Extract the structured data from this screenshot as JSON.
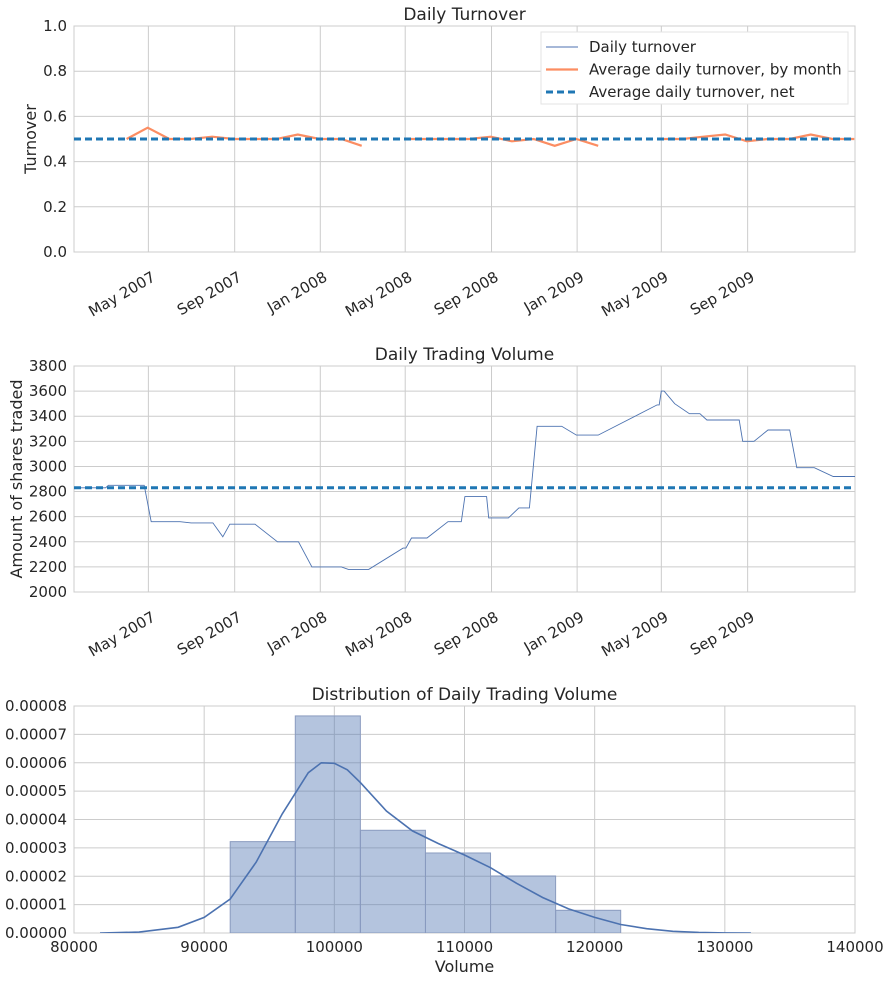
{
  "chart_data": [
    {
      "type": "line",
      "title": "Daily Turnover",
      "xlabel": "",
      "ylabel": "Turnover",
      "ylim": [
        0,
        1.0
      ],
      "xlim": [
        "2007-01-15",
        "2010-02-01"
      ],
      "yticks": [
        "0.0",
        "0.2",
        "0.4",
        "0.6",
        "0.8",
        "1.0"
      ],
      "xticks": [
        "May 2007",
        "Sep 2007",
        "Jan 2008",
        "May 2008",
        "Sep 2008",
        "Jan 2009",
        "May 2009",
        "Sep 2009"
      ],
      "grid": true,
      "legend_position": "top-right",
      "legend": [
        "Daily turnover",
        "Average daily turnover, by month",
        "Average daily turnover, net"
      ],
      "series": [
        {
          "name": "Average daily turnover, by month",
          "color": "#fc8d62",
          "segments": [
            [
              [
                "2007-03-31",
                0.5
              ],
              [
                "2007-04-30",
                0.55
              ],
              [
                "2007-05-31",
                0.5
              ],
              [
                "2007-06-30",
                0.5
              ],
              [
                "2007-07-31",
                0.51
              ],
              [
                "2007-08-31",
                0.5
              ],
              [
                "2007-09-30",
                0.5
              ],
              [
                "2007-10-31",
                0.5
              ],
              [
                "2007-11-30",
                0.52
              ],
              [
                "2007-12-31",
                0.5
              ],
              [
                "2008-01-31",
                0.5
              ],
              [
                "2008-02-29",
                0.47
              ]
            ],
            [
              [
                "2008-04-30",
                0.5
              ],
              [
                "2008-05-31",
                0.5
              ],
              [
                "2008-06-30",
                0.5
              ],
              [
                "2008-07-31",
                0.5
              ],
              [
                "2008-08-31",
                0.51
              ],
              [
                "2008-09-30",
                0.49
              ],
              [
                "2008-10-31",
                0.5
              ],
              [
                "2008-11-30",
                0.47
              ],
              [
                "2008-12-31",
                0.5
              ],
              [
                "2009-01-31",
                0.47
              ]
            ],
            [
              [
                "2009-04-30",
                0.5
              ],
              [
                "2009-05-31",
                0.5
              ],
              [
                "2009-06-30",
                0.51
              ],
              [
                "2009-07-31",
                0.52
              ],
              [
                "2009-08-31",
                0.49
              ],
              [
                "2009-09-30",
                0.5
              ],
              [
                "2009-10-31",
                0.5
              ],
              [
                "2009-11-30",
                0.52
              ],
              [
                "2009-12-31",
                0.5
              ],
              [
                "2010-01-31",
                0.5
              ]
            ]
          ]
        },
        {
          "name": "Average daily turnover, net",
          "color": "#1f77b4",
          "style": "dashed",
          "value": 0.5
        }
      ]
    },
    {
      "type": "line",
      "title": "Daily Trading Volume",
      "xlabel": "",
      "ylabel": "Amount of shares traded",
      "ylim": [
        2000,
        3800
      ],
      "xlim": [
        "2007-01-15",
        "2010-02-01"
      ],
      "yticks": [
        "2000",
        "2200",
        "2400",
        "2600",
        "2800",
        "3000",
        "3200",
        "3400",
        "3600",
        "3800"
      ],
      "xticks": [
        "May 2007",
        "Sep 2007",
        "Jan 2008",
        "May 2008",
        "Sep 2008",
        "Jan 2009",
        "May 2009",
        "Sep 2009"
      ],
      "grid": true,
      "series": [
        {
          "name": "Daily turnover",
          "color": "#4c72b0",
          "points": [
            [
              "2007-01-15",
              2830
            ],
            [
              "2007-03-01",
              2830
            ],
            [
              "2007-03-05",
              2850
            ],
            [
              "2007-04-25",
              2850
            ],
            [
              "2007-05-05",
              2560
            ],
            [
              "2007-06-15",
              2560
            ],
            [
              "2007-07-01",
              2550
            ],
            [
              "2007-08-01",
              2550
            ],
            [
              "2007-08-15",
              2440
            ],
            [
              "2007-08-25",
              2540
            ],
            [
              "2007-09-30",
              2540
            ],
            [
              "2007-11-01",
              2400
            ],
            [
              "2007-12-01",
              2400
            ],
            [
              "2007-12-20",
              2200
            ],
            [
              "2008-01-31",
              2200
            ],
            [
              "2008-02-10",
              2180
            ],
            [
              "2008-03-10",
              2180
            ],
            [
              "2008-04-28",
              2350
            ],
            [
              "2008-05-02",
              2350
            ],
            [
              "2008-05-10",
              2430
            ],
            [
              "2008-06-01",
              2430
            ],
            [
              "2008-07-01",
              2560
            ],
            [
              "2008-07-20",
              2560
            ],
            [
              "2008-07-25",
              2760
            ],
            [
              "2008-08-25",
              2760
            ],
            [
              "2008-08-28",
              2590
            ],
            [
              "2008-09-25",
              2590
            ],
            [
              "2008-10-10",
              2670
            ],
            [
              "2008-10-25",
              2670
            ],
            [
              "2008-11-05",
              3320
            ],
            [
              "2008-12-10",
              3320
            ],
            [
              "2008-12-31",
              3250
            ],
            [
              "2009-01-31",
              3250
            ],
            [
              "2009-04-25",
              3490
            ],
            [
              "2009-04-28",
              3490
            ],
            [
              "2009-05-01",
              3600
            ],
            [
              "2009-05-05",
              3600
            ],
            [
              "2009-05-20",
              3500
            ],
            [
              "2009-06-10",
              3420
            ],
            [
              "2009-06-25",
              3420
            ],
            [
              "2009-07-05",
              3370
            ],
            [
              "2009-08-20",
              3370
            ],
            [
              "2009-08-25",
              3200
            ],
            [
              "2009-09-10",
              3200
            ],
            [
              "2009-09-30",
              3290
            ],
            [
              "2009-10-31",
              3290
            ],
            [
              "2009-11-10",
              2990
            ],
            [
              "2009-12-05",
              2990
            ],
            [
              "2010-01-01",
              2920
            ],
            [
              "2010-02-01",
              2920
            ]
          ]
        },
        {
          "name": "Average daily turnover, net",
          "color": "#1f77b4",
          "style": "dashed",
          "value": 2830
        }
      ]
    },
    {
      "type": "bar",
      "title": "Distribution of Daily Trading Volume",
      "xlabel": "Volume",
      "ylabel": "",
      "xlim": [
        80000,
        140000
      ],
      "ylim": [
        0,
        8e-05
      ],
      "xticks": [
        "80000",
        "90000",
        "100000",
        "110000",
        "120000",
        "130000",
        "140000"
      ],
      "yticks": [
        "0.00000",
        "0.00001",
        "0.00002",
        "0.00003",
        "0.00004",
        "0.00005",
        "0.00006",
        "0.00007",
        "0.00008"
      ],
      "grid": true,
      "bars_color": "#4c72b0",
      "bins": [
        {
          "x0": 92000,
          "x1": 97000,
          "value": 3.22e-05
        },
        {
          "x0": 97000,
          "x1": 102000,
          "value": 7.65e-05
        },
        {
          "x0": 102000,
          "x1": 107000,
          "value": 3.62e-05
        },
        {
          "x0": 107000,
          "x1": 112000,
          "value": 2.82e-05
        },
        {
          "x0": 112000,
          "x1": 117000,
          "value": 2.01e-05
        },
        {
          "x0": 117000,
          "x1": 122000,
          "value": 8e-06
        }
      ],
      "kde": {
        "color": "#4c72b0",
        "points": [
          [
            82000,
            0.0
          ],
          [
            85000,
            3e-07
          ],
          [
            88000,
            2e-06
          ],
          [
            90000,
            5.5e-06
          ],
          [
            92000,
            1.2e-05
          ],
          [
            94000,
            2.5e-05
          ],
          [
            96000,
            4.2e-05
          ],
          [
            98000,
            5.65e-05
          ],
          [
            99000,
            6e-05
          ],
          [
            100000,
            5.98e-05
          ],
          [
            101000,
            5.75e-05
          ],
          [
            102000,
            5.3e-05
          ],
          [
            104000,
            4.3e-05
          ],
          [
            106000,
            3.6e-05
          ],
          [
            108000,
            3.15e-05
          ],
          [
            110000,
            2.75e-05
          ],
          [
            112000,
            2.3e-05
          ],
          [
            114000,
            1.75e-05
          ],
          [
            116000,
            1.25e-05
          ],
          [
            118000,
            8.5e-06
          ],
          [
            120000,
            5.5e-06
          ],
          [
            122000,
            3e-06
          ],
          [
            124000,
            1.5e-06
          ],
          [
            126000,
            6e-07
          ],
          [
            128000,
            2e-07
          ],
          [
            130000,
            5e-08
          ],
          [
            132000,
            0.0
          ]
        ]
      }
    }
  ]
}
